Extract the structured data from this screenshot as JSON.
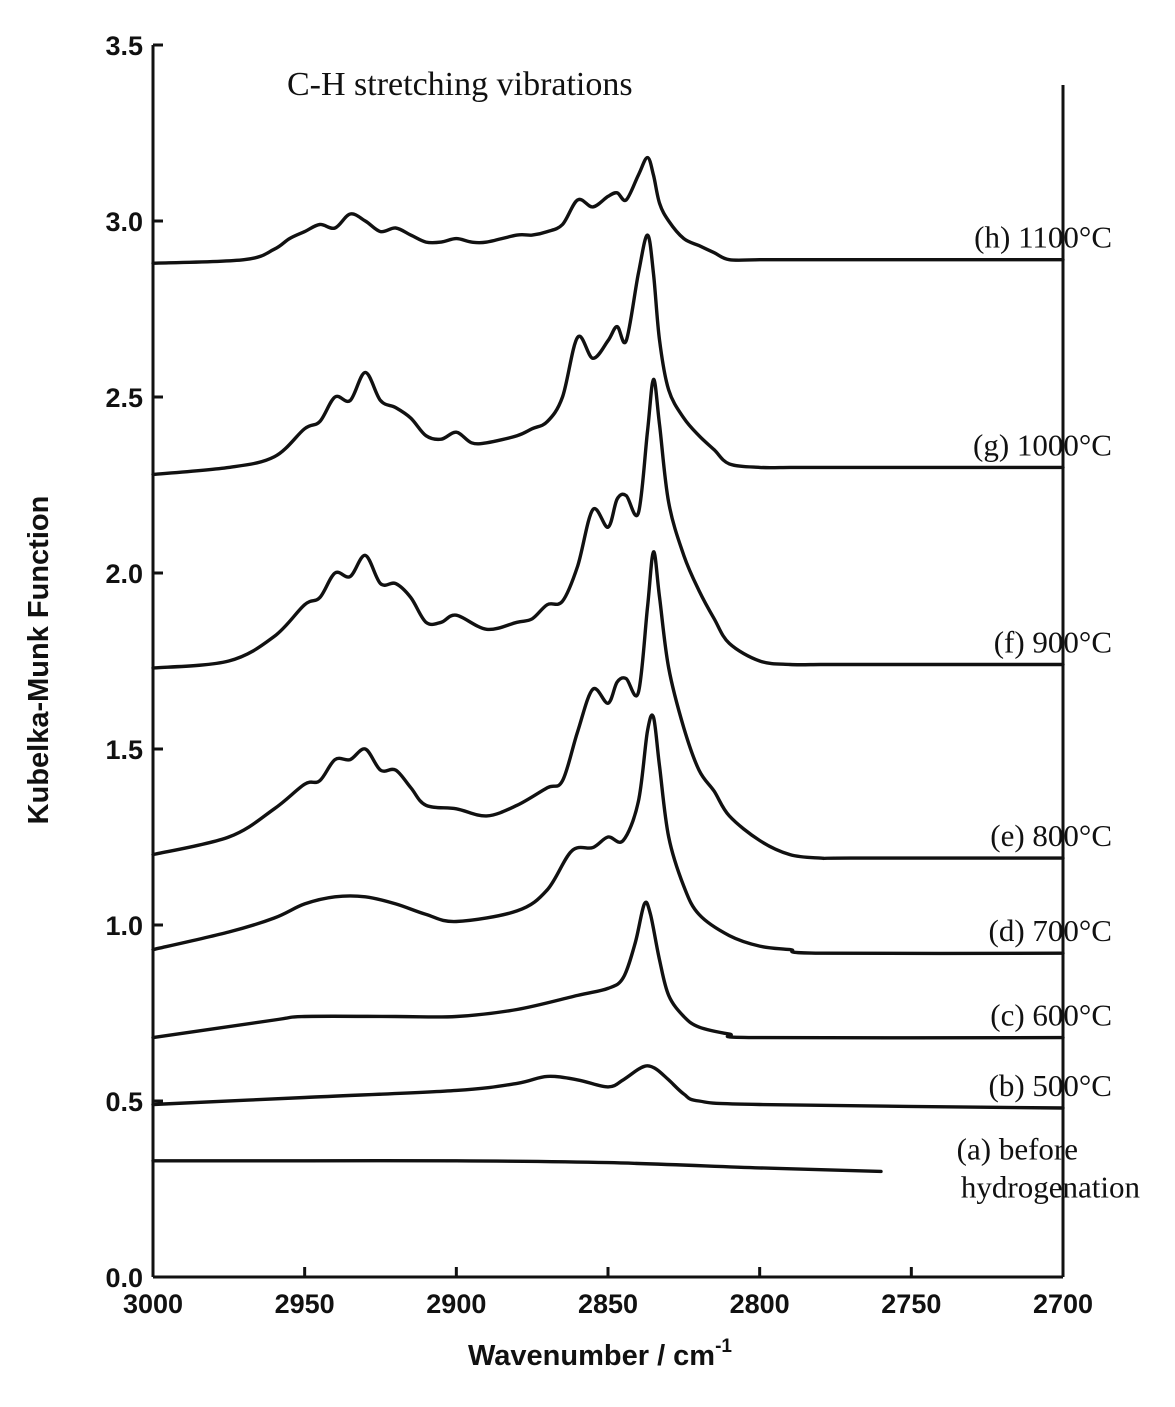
{
  "chart_data": {
    "type": "line",
    "title": "",
    "annotation": "C-H stretching vibrations",
    "xlabel": "Wavenumber / cm",
    "xlabel_superscript": "-1",
    "ylabel": "Kubelka-Munk Function",
    "xlim": [
      3000,
      2700
    ],
    "ylim": [
      0,
      3.5
    ],
    "x_reversed": true,
    "grid": false,
    "legend": "none; series labelled at right end of each curve",
    "xticks": [
      {
        "value": 3000,
        "label": "3000"
      },
      {
        "value": 2950,
        "label": "2950"
      },
      {
        "value": 2900,
        "label": "2900"
      },
      {
        "value": 2850,
        "label": "2850"
      },
      {
        "value": 2800,
        "label": "2800"
      },
      {
        "value": 2750,
        "label": "2750"
      },
      {
        "value": 2700,
        "label": "2700"
      }
    ],
    "yticks": [
      {
        "value": 0.0,
        "label": "0.0"
      },
      {
        "value": 0.5,
        "label": "0.5"
      },
      {
        "value": 1.0,
        "label": "1.0"
      },
      {
        "value": 1.5,
        "label": "1.5"
      },
      {
        "value": 2.0,
        "label": "2.0"
      },
      {
        "value": 2.5,
        "label": "2.5"
      },
      {
        "value": 3.0,
        "label": "3.0"
      },
      {
        "value": 3.5,
        "label": "3.5"
      }
    ],
    "series": [
      {
        "name": "(a) before hydrogenation",
        "label_lines": [
          "(a) before",
          "hydrogenation"
        ],
        "x": [
          3000,
          2950,
          2900,
          2850,
          2800,
          2760
        ],
        "y": [
          0.33,
          0.33,
          0.33,
          0.325,
          0.31,
          0.3
        ]
      },
      {
        "name": "(b) 500°C",
        "x": [
          3000,
          2950,
          2900,
          2880,
          2870,
          2860,
          2850,
          2845,
          2840,
          2837,
          2834,
          2830,
          2825,
          2820,
          2800,
          2700
        ],
        "y": [
          0.49,
          0.51,
          0.53,
          0.55,
          0.57,
          0.56,
          0.54,
          0.56,
          0.59,
          0.6,
          0.59,
          0.56,
          0.52,
          0.5,
          0.49,
          0.48
        ]
      },
      {
        "name": "(c) 600°C",
        "x": [
          3000,
          2960,
          2950,
          2920,
          2900,
          2880,
          2860,
          2850,
          2845,
          2841,
          2838,
          2836,
          2833,
          2830,
          2825,
          2820,
          2810,
          2800,
          2700
        ],
        "y": [
          0.68,
          0.73,
          0.74,
          0.74,
          0.74,
          0.76,
          0.8,
          0.82,
          0.85,
          0.95,
          1.06,
          1.03,
          0.9,
          0.8,
          0.74,
          0.71,
          0.69,
          0.68,
          0.68
        ]
      },
      {
        "name": "(d) 700°C",
        "x": [
          3000,
          2975,
          2960,
          2950,
          2940,
          2930,
          2920,
          2910,
          2900,
          2880,
          2870,
          2862,
          2855,
          2850,
          2845,
          2840,
          2837,
          2835,
          2833,
          2830,
          2825,
          2820,
          2810,
          2800,
          2790,
          2780,
          2700
        ],
        "y": [
          0.93,
          0.98,
          1.02,
          1.06,
          1.08,
          1.08,
          1.06,
          1.03,
          1.01,
          1.04,
          1.1,
          1.21,
          1.22,
          1.25,
          1.24,
          1.35,
          1.55,
          1.59,
          1.45,
          1.25,
          1.11,
          1.03,
          0.97,
          0.94,
          0.93,
          0.92,
          0.92
        ]
      },
      {
        "name": "(e) 800°C",
        "x": [
          3000,
          2975,
          2960,
          2950,
          2945,
          2940,
          2935,
          2930,
          2925,
          2920,
          2915,
          2910,
          2900,
          2890,
          2880,
          2870,
          2865,
          2860,
          2855,
          2850,
          2847,
          2844,
          2840,
          2837,
          2835,
          2833,
          2830,
          2825,
          2820,
          2815,
          2810,
          2800,
          2790,
          2780,
          2770,
          2700
        ],
        "y": [
          1.2,
          1.25,
          1.33,
          1.4,
          1.41,
          1.47,
          1.47,
          1.5,
          1.44,
          1.44,
          1.39,
          1.34,
          1.33,
          1.31,
          1.34,
          1.39,
          1.41,
          1.55,
          1.67,
          1.63,
          1.69,
          1.7,
          1.66,
          1.9,
          2.06,
          1.93,
          1.73,
          1.56,
          1.44,
          1.38,
          1.31,
          1.24,
          1.2,
          1.19,
          1.19,
          1.19
        ]
      },
      {
        "name": "(f) 900°C",
        "x": [
          3000,
          2975,
          2960,
          2950,
          2945,
          2940,
          2935,
          2930,
          2925,
          2920,
          2915,
          2910,
          2905,
          2900,
          2890,
          2880,
          2875,
          2870,
          2865,
          2860,
          2855,
          2850,
          2847,
          2844,
          2840,
          2837,
          2835,
          2833,
          2830,
          2825,
          2820,
          2815,
          2810,
          2800,
          2790,
          2780,
          2770,
          2700
        ],
        "y": [
          1.73,
          1.75,
          1.82,
          1.91,
          1.93,
          2.0,
          1.99,
          2.05,
          1.97,
          1.97,
          1.93,
          1.86,
          1.86,
          1.88,
          1.84,
          1.86,
          1.87,
          1.91,
          1.92,
          2.02,
          2.18,
          2.13,
          2.21,
          2.22,
          2.17,
          2.4,
          2.55,
          2.42,
          2.2,
          2.05,
          1.95,
          1.87,
          1.8,
          1.75,
          1.74,
          1.74,
          1.74,
          1.74
        ]
      },
      {
        "name": "(g) 1000°C",
        "x": [
          3000,
          2975,
          2960,
          2950,
          2945,
          2940,
          2935,
          2930,
          2925,
          2920,
          2915,
          2910,
          2905,
          2900,
          2895,
          2890,
          2880,
          2875,
          2870,
          2865,
          2860,
          2855,
          2850,
          2847,
          2844,
          2840,
          2837,
          2835,
          2833,
          2830,
          2825,
          2820,
          2815,
          2810,
          2800,
          2790,
          2780,
          2770,
          2700
        ],
        "y": [
          2.28,
          2.3,
          2.33,
          2.41,
          2.43,
          2.5,
          2.49,
          2.57,
          2.49,
          2.47,
          2.44,
          2.39,
          2.38,
          2.4,
          2.37,
          2.37,
          2.39,
          2.41,
          2.43,
          2.5,
          2.67,
          2.61,
          2.66,
          2.7,
          2.66,
          2.85,
          2.96,
          2.85,
          2.66,
          2.52,
          2.44,
          2.39,
          2.35,
          2.31,
          2.3,
          2.3,
          2.3,
          2.3,
          2.3
        ]
      },
      {
        "name": "(h) 1100°C",
        "x": [
          3000,
          2970,
          2960,
          2955,
          2950,
          2945,
          2940,
          2935,
          2930,
          2925,
          2920,
          2915,
          2910,
          2905,
          2900,
          2895,
          2890,
          2880,
          2875,
          2870,
          2865,
          2860,
          2855,
          2850,
          2847,
          2844,
          2840,
          2837,
          2835,
          2833,
          2830,
          2825,
          2820,
          2815,
          2810,
          2800,
          2790,
          2780,
          2770,
          2700
        ],
        "y": [
          2.88,
          2.89,
          2.92,
          2.95,
          2.97,
          2.99,
          2.98,
          3.02,
          3.0,
          2.97,
          2.98,
          2.96,
          2.94,
          2.94,
          2.95,
          2.94,
          2.94,
          2.96,
          2.96,
          2.97,
          2.99,
          3.06,
          3.04,
          3.07,
          3.08,
          3.06,
          3.13,
          3.18,
          3.13,
          3.05,
          3.0,
          2.95,
          2.93,
          2.91,
          2.89,
          2.89,
          2.89,
          2.89,
          2.89,
          2.89
        ]
      }
    ]
  }
}
